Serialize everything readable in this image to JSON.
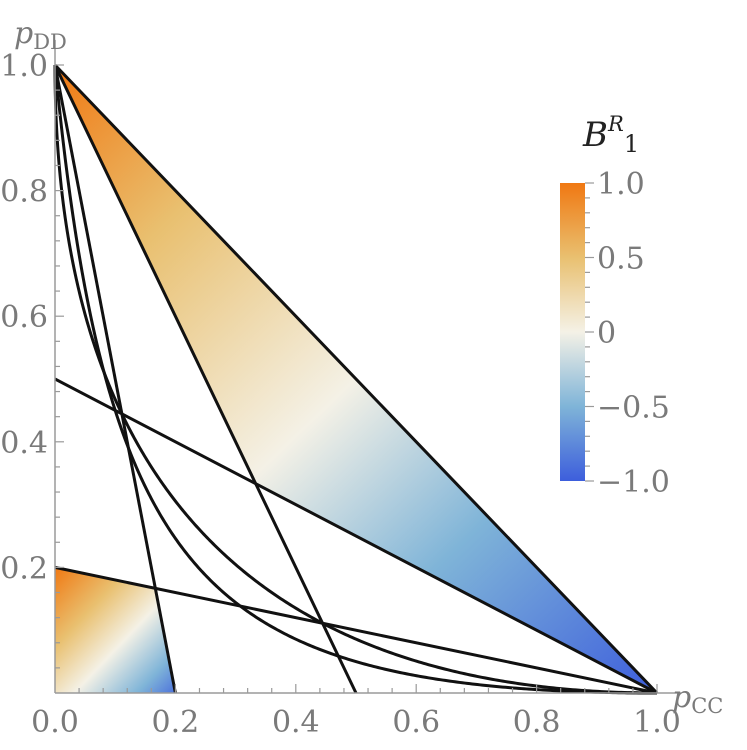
{
  "chart_data": {
    "type": "area",
    "title": "",
    "xlabel": {
      "main": "p",
      "sub": "CC"
    },
    "ylabel": {
      "main": "p",
      "sub": "DD"
    },
    "xlim": [
      0,
      1
    ],
    "ylim": [
      0,
      1
    ],
    "x_ticks": [
      0,
      0.2,
      0.4,
      0.6,
      0.8,
      1.0
    ],
    "x_tick_labels": [
      "0.0",
      "0.2",
      "0.4",
      "0.6",
      "0.8",
      "1.0"
    ],
    "y_ticks": [
      0.2,
      0.4,
      0.6,
      0.8,
      1.0
    ],
    "y_tick_labels": [
      "0.2",
      "0.4",
      "0.6",
      "0.8",
      "1.0"
    ],
    "grid": false,
    "legend": {
      "placement": "right",
      "title": {
        "main": "B",
        "sup": "R",
        "sub": "1"
      },
      "ticks": [
        1.0,
        0.5,
        0,
        -0.5,
        -1.0
      ],
      "tick_labels": [
        "1.0",
        "0.5",
        "0",
        "−0.5",
        "−1.0"
      ],
      "range": [
        -1,
        1
      ],
      "colors": {
        "max": "#f07812",
        "mid": "#f4f1e6",
        "min": "#3d5edc",
        "upper_mid": "#e9c070",
        "lower_mid": "#7fb4d8"
      }
    },
    "shaded_regions": [
      {
        "name": "upper",
        "vertices": [
          [
            0,
            1
          ],
          [
            1,
            0
          ],
          [
            0.333,
            0.333
          ]
        ],
        "value_top": 1.0,
        "value_bottom": -1.0
      },
      {
        "name": "lower",
        "vertices": [
          [
            0,
            0
          ],
          [
            0,
            0.2
          ],
          [
            0.167,
            0.167
          ],
          [
            0.2,
            0
          ]
        ],
        "value_top": 1.0,
        "value_bottom": -1.0
      }
    ],
    "lines": [
      {
        "points": [
          [
            0,
            1
          ],
          [
            1,
            0
          ]
        ]
      },
      {
        "points": [
          [
            0,
            1
          ],
          [
            0.2,
            0
          ]
        ]
      },
      {
        "points": [
          [
            0,
            1
          ],
          [
            0.5,
            0
          ]
        ]
      },
      {
        "points": [
          [
            0,
            0.5
          ],
          [
            1,
            0
          ]
        ]
      },
      {
        "points": [
          [
            0,
            0.2
          ],
          [
            1,
            0
          ]
        ]
      }
    ],
    "curves": [
      {
        "formula": "y = (1 - sqrt(x))^2"
      },
      {
        "formula": "y = (1 - x)^2 / (1 + 8x)"
      }
    ]
  }
}
